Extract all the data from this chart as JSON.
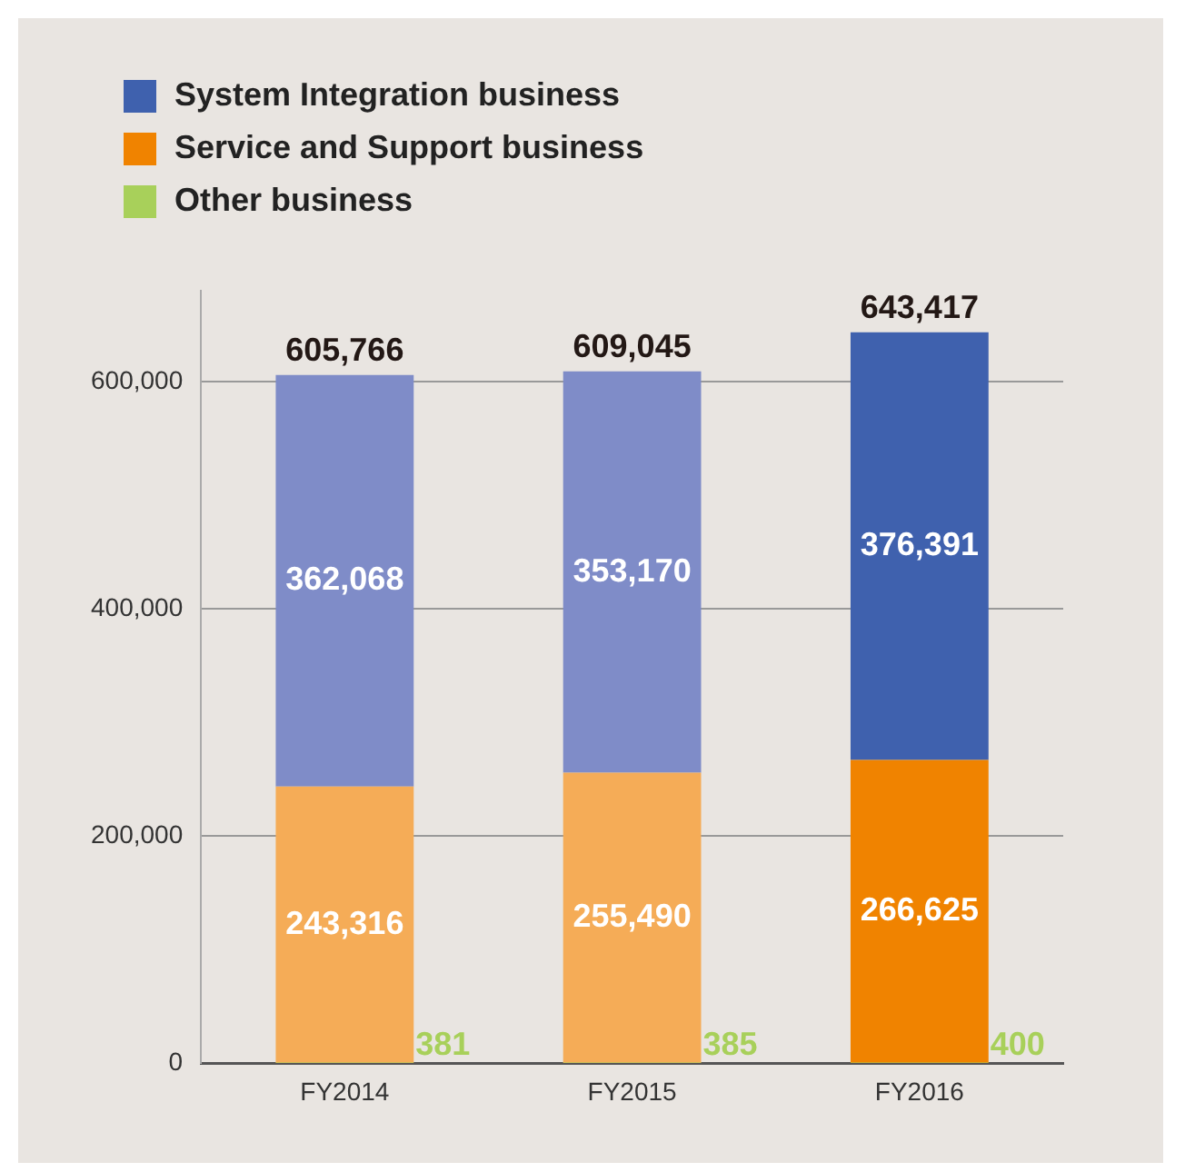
{
  "chart_data": {
    "type": "bar",
    "stacked": true,
    "categories": [
      "FY2014",
      "FY2015",
      "FY2016"
    ],
    "series": [
      {
        "name": "Other business",
        "color": "#a8d05a",
        "colors": [
          "#a8d05a",
          "#a8d05a",
          "#a8d05a"
        ],
        "values": [
          381,
          385,
          400
        ],
        "value_labels": [
          "381",
          "385",
          "400"
        ]
      },
      {
        "name": "Service and Support business",
        "color": "#f08300",
        "colors": [
          "#f5ac57",
          "#f5ac57",
          "#f08300"
        ],
        "values": [
          243316,
          255490,
          266625
        ],
        "value_labels": [
          "243,316",
          "255,490",
          "266,625"
        ]
      },
      {
        "name": "System Integration business",
        "color": "#3f61ae",
        "colors": [
          "#7f8cc8",
          "#7f8cc8",
          "#3f61ae"
        ],
        "values": [
          362068,
          353170,
          376391
        ],
        "value_labels": [
          "362,068",
          "353,170",
          "376,391"
        ]
      }
    ],
    "totals": [
      "605,766",
      "609,045",
      "643,417"
    ],
    "ylim": [
      0,
      680000
    ],
    "yticks": [
      0,
      {
        "value": 200000,
        "label": "200,000"
      },
      {
        "value": 400000,
        "label": "400,000"
      },
      {
        "value": 600000,
        "label": "600,000"
      }
    ],
    "grid": "y",
    "legend": "top left"
  }
}
